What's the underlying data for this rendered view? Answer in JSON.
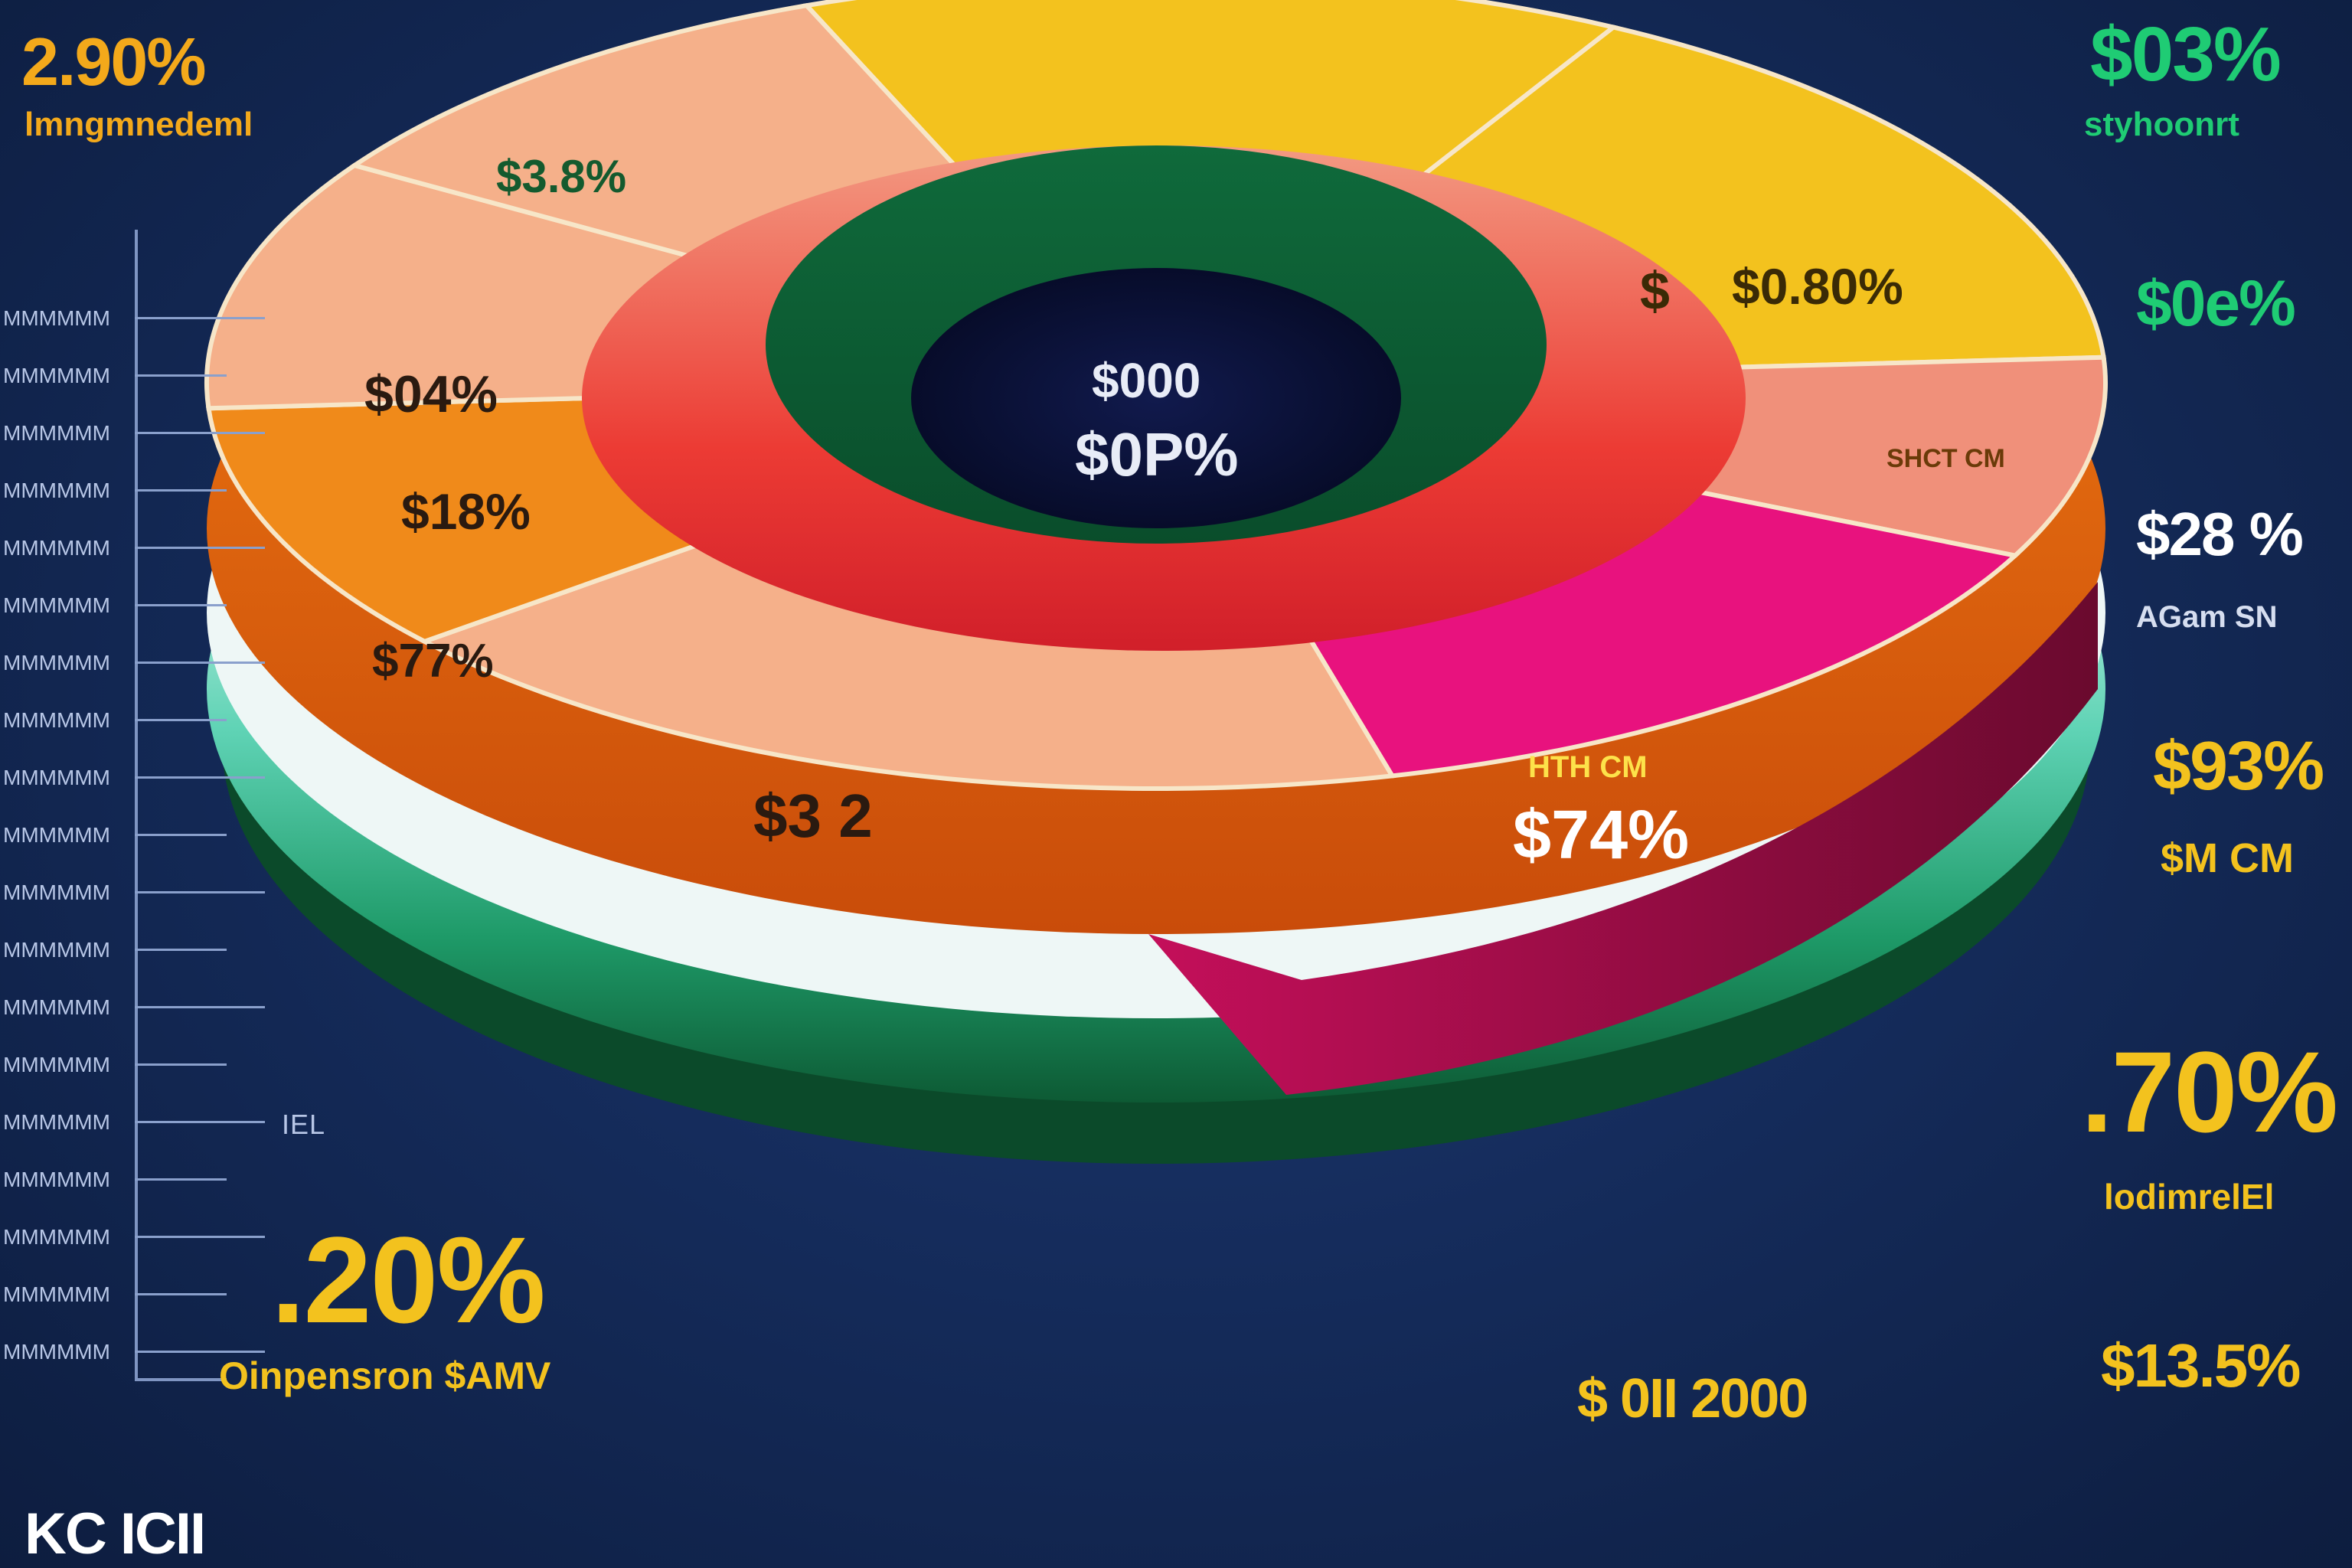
{
  "colors": {
    "background": "#152c5c",
    "yellow": "#f3c21e",
    "gold": "#e9a81a",
    "peach": "#f5b08a",
    "salmon": "#f0907a",
    "orange": "#f08a1a",
    "magenta": "#e8127e",
    "red": "#e82c2c",
    "green": "#1a7a44",
    "teal": "#5fd3b5",
    "navy": "#0b1336"
  },
  "chart_data": {
    "type": "pie",
    "title": "",
    "categories": [
      "$3.8%",
      "$0.80%",
      "$28 %",
      "$74%",
      "$3 2",
      "$77%",
      "$18%",
      "$04%"
    ],
    "values": [
      14,
      16,
      8,
      14,
      18,
      10,
      10,
      10
    ],
    "center": {
      "line1": "$000",
      "line2": "$0P%"
    },
    "slice_captions": {
      "top_yellow": "$3.8%",
      "right_yellow": "$0.80%",
      "right_yellow_dollar": "$",
      "right_tab": "SHCT CM",
      "magenta_heading": "HTH CM",
      "magenta_value": "$74%",
      "front_value": "$3 2",
      "left_orange": "$77%",
      "left_peach_1": "$04%",
      "left_peach_2": "$18%"
    }
  },
  "corner_labels": {
    "top_left_value": "2.90%",
    "top_left_caption": "lmngmnedeml",
    "top_right_value": "$03%",
    "top_right_caption": "styhoonrt",
    "right_1_value": "$0e%",
    "right_2_value": "$28 %",
    "right_2_caption": "AGam SN",
    "right_3_value": "$93%",
    "right_3_caption": "$M CM",
    "right_4_value": ".70%",
    "right_4_caption": "lodimrelEl",
    "right_5_value": "$13.5%",
    "bottom_left_value": ".20%",
    "bottom_left_caption": "Oinpensron $AMV",
    "bottom_center_value": "$ 0II 2000",
    "footer_logo": "KC ICII",
    "axis_marker": "IEL"
  },
  "axis_ticks": [
    "MMMMMM",
    "MMMMMM",
    "MMMMMM",
    "MMMMMM",
    "MMMMMM",
    "MMMMMM",
    "MMMMMM",
    "MMMMMM",
    "MMMMMM",
    "MMMMMM",
    "MMMMMM",
    "MMMMMM",
    "MMMMMM",
    "MMMMMM",
    "MMMMMM",
    "MMMMMM",
    "MMMMMM",
    "MMMMMM",
    "MMMMMM"
  ]
}
